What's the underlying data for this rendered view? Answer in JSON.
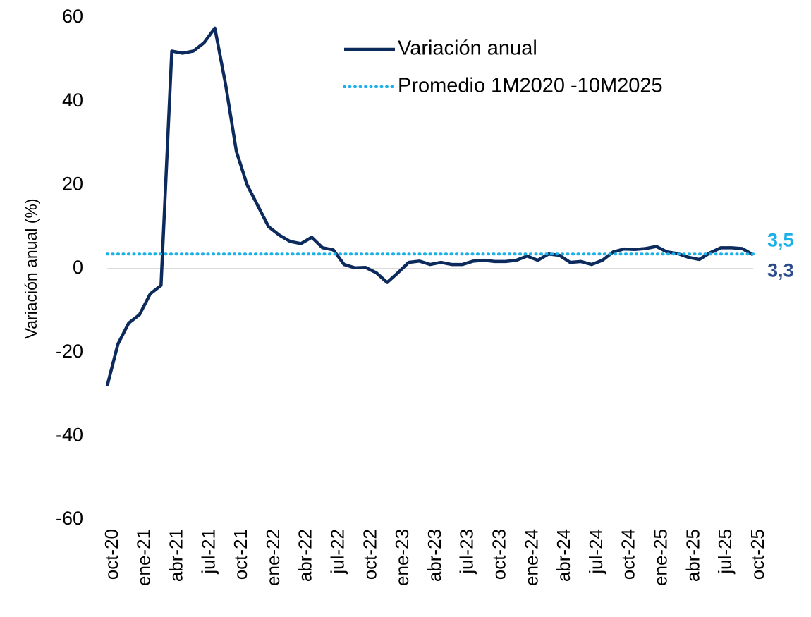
{
  "chart_data": {
    "type": "line",
    "y_label": "Variación anual (%)",
    "categories": [
      "oct-20",
      null,
      null,
      "ene-21",
      null,
      null,
      "abr-21",
      null,
      null,
      "jul-21",
      null,
      null,
      "oct-21",
      null,
      null,
      "ene-22",
      null,
      null,
      "abr-22",
      null,
      null,
      "jul-22",
      null,
      null,
      "oct-22",
      null,
      null,
      "ene-23",
      null,
      null,
      "abr-23",
      null,
      null,
      "jul-23",
      null,
      null,
      "oct-23",
      null,
      null,
      "ene-24",
      null,
      null,
      "abr-24",
      null,
      null,
      "jul-24",
      null,
      null,
      "oct-24",
      null,
      null,
      "ene-25",
      null,
      null,
      "abr-25",
      null,
      null,
      "jul-25",
      null,
      null,
      "oct-25"
    ],
    "series": [
      {
        "name": "Variación anual",
        "color": "#0d2a5c",
        "style": "solid",
        "values": [
          -28,
          -18,
          -13,
          -11,
          -6,
          -4,
          52,
          51.5,
          52,
          54,
          57.5,
          44,
          28,
          20,
          15,
          10,
          8,
          6.5,
          6,
          7.5,
          5,
          4.5,
          1,
          0.2,
          0.3,
          -1,
          -3.3,
          -1,
          1.5,
          1.8,
          1,
          1.5,
          1,
          1,
          1.8,
          2,
          1.7,
          1.7,
          2,
          3,
          2,
          3.5,
          3.2,
          1.5,
          1.7,
          1,
          2,
          4,
          4.7,
          4.6,
          4.8,
          5.3,
          4,
          3.6,
          2.7,
          2.2,
          3.8,
          5,
          5,
          4.8,
          3.3
        ],
        "value_labels": [
          null,
          null,
          null,
          null,
          null,
          null,
          null,
          null,
          null,
          null,
          null,
          null,
          null,
          null,
          null,
          null,
          null,
          null,
          null,
          null,
          null,
          null,
          null,
          null,
          null,
          null,
          null,
          null,
          null,
          null,
          null,
          null,
          null,
          null,
          null,
          null,
          null,
          null,
          null,
          null,
          null,
          null,
          null,
          null,
          null,
          null,
          null,
          null,
          null,
          null,
          null,
          null,
          null,
          null,
          null,
          null,
          null,
          null,
          null,
          null,
          "3,3"
        ]
      },
      {
        "name": "Promedio 1M2020 -10M2025",
        "color": "#1ab0e8",
        "style": "dotted",
        "values": [
          3.5,
          3.5,
          3.5,
          3.5,
          3.5,
          3.5,
          3.5,
          3.5,
          3.5,
          3.5,
          3.5,
          3.5,
          3.5,
          3.5,
          3.5,
          3.5,
          3.5,
          3.5,
          3.5,
          3.5,
          3.5,
          3.5,
          3.5,
          3.5,
          3.5,
          3.5,
          3.5,
          3.5,
          3.5,
          3.5,
          3.5,
          3.5,
          3.5,
          3.5,
          3.5,
          3.5,
          3.5,
          3.5,
          3.5,
          3.5,
          3.5,
          3.5,
          3.5,
          3.5,
          3.5,
          3.5,
          3.5,
          3.5,
          3.5,
          3.5,
          3.5,
          3.5,
          3.5,
          3.5,
          3.5,
          3.5,
          3.5,
          3.5,
          3.5,
          3.5,
          3.5
        ],
        "value_labels": [
          null,
          null,
          null,
          null,
          null,
          null,
          null,
          null,
          null,
          null,
          null,
          null,
          null,
          null,
          null,
          null,
          null,
          null,
          null,
          null,
          null,
          null,
          null,
          null,
          null,
          null,
          null,
          null,
          null,
          null,
          null,
          null,
          null,
          null,
          null,
          null,
          null,
          null,
          null,
          null,
          null,
          null,
          null,
          null,
          null,
          null,
          null,
          null,
          null,
          null,
          null,
          null,
          null,
          null,
          null,
          null,
          null,
          null,
          null,
          null,
          "3,5"
        ]
      }
    ],
    "ylim": [
      -60,
      60
    ],
    "yticks": [
      -60,
      -40,
      -20,
      0,
      20,
      40,
      60
    ],
    "grid": false,
    "legend": "upper right"
  }
}
